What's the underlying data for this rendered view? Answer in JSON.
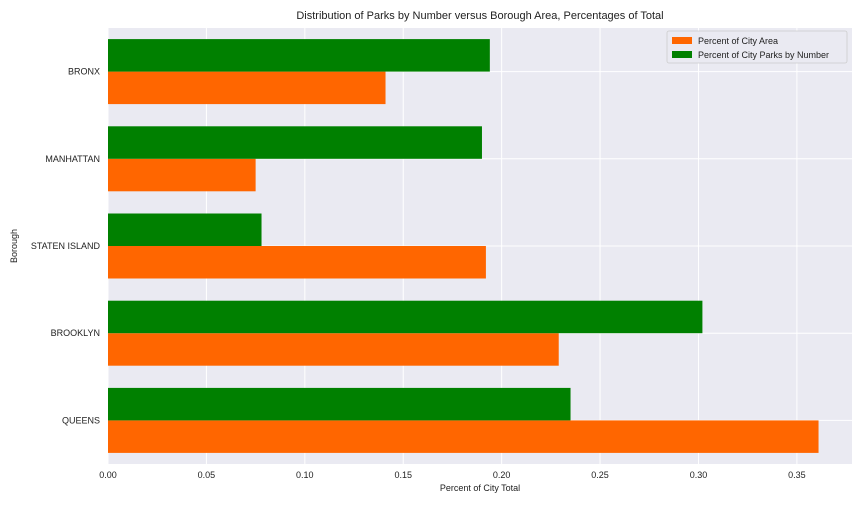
{
  "chart_data": {
    "type": "bar",
    "orientation": "horizontal",
    "title": "Distribution of Parks by Number versus Borough Area, Percentages of Total",
    "xlabel": "Percent of City Total",
    "ylabel": "Borough",
    "categories": [
      "QUEENS",
      "BROOKLYN",
      "STATEN ISLAND",
      "MANHATTAN",
      "BRONX"
    ],
    "series": [
      {
        "name": "Percent of City Area",
        "color": "#ff6600",
        "values": [
          0.361,
          0.229,
          0.192,
          0.075,
          0.141
        ]
      },
      {
        "name": "Percent of City Parks by Number",
        "color": "#008000",
        "values": [
          0.235,
          0.302,
          0.078,
          0.19,
          0.194
        ]
      }
    ],
    "xlim": [
      0,
      0.378
    ],
    "xticks": [
      "0.00",
      "0.05",
      "0.10",
      "0.15",
      "0.20",
      "0.25",
      "0.30",
      "0.35"
    ],
    "grid": true,
    "legend_position": "top-right",
    "background_color": "#eaeaf2",
    "grid_color": "#ffffff"
  }
}
